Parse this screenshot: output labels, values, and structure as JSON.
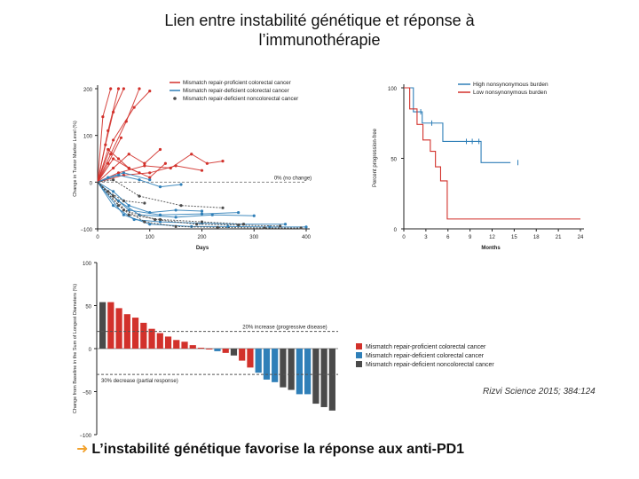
{
  "slide": {
    "title_line1": "Lien entre instabilité génétique et réponse à",
    "title_line2": "l’immunothérapie",
    "citation": "Rizvi Science 2015; 384:124",
    "takeaway": "L’instabilité génétique favorise la réponse aux anti-PD1",
    "arrow_glyph": "➜"
  },
  "colors": {
    "red": "#d2312b",
    "blue": "#2f7fb8",
    "gray": "#4a4a4a",
    "orange": "#f2a22e"
  },
  "chart_data": [
    {
      "id": "spider",
      "type": "line",
      "xlabel": "Days",
      "ylabel": "Change in Tumor Marker Level (%)",
      "xlim": [
        0,
        400
      ],
      "ylim": [
        -100,
        200
      ],
      "xticks": [
        "0",
        "100",
        "200",
        "300",
        "400"
      ],
      "yticks": [
        "200",
        "100",
        "0",
        "−100"
      ],
      "annotation": "0% (no change)",
      "legend": [
        {
          "label": "Mismatch repair-proficient colorectal cancer",
          "color": "#d2312b",
          "marker": "line"
        },
        {
          "label": "Mismatch repair-deficient colorectal cancer",
          "color": "#2f7fb8",
          "marker": "line"
        },
        {
          "label": "Mismatch repair-deficient noncolorectal cancer",
          "color": "#4a4a4a",
          "marker": "dot"
        }
      ],
      "series": [
        {
          "group": "red",
          "x": [
            0,
            20,
            40
          ],
          "y": [
            0,
            110,
            200
          ]
        },
        {
          "group": "red",
          "x": [
            0,
            15,
            30,
            50
          ],
          "y": [
            0,
            80,
            150,
            200
          ]
        },
        {
          "group": "red",
          "x": [
            0,
            25,
            55,
            80
          ],
          "y": [
            0,
            60,
            130,
            200
          ]
        },
        {
          "group": "red",
          "x": [
            0,
            30,
            70,
            100
          ],
          "y": [
            0,
            90,
            160,
            195
          ]
        },
        {
          "group": "red",
          "x": [
            0,
            20,
            45
          ],
          "y": [
            0,
            40,
            95
          ]
        },
        {
          "group": "red",
          "x": [
            0,
            30,
            60,
            90,
            120
          ],
          "y": [
            0,
            30,
            60,
            40,
            70
          ]
        },
        {
          "group": "red",
          "x": [
            0,
            40,
            90,
            140,
            180,
            210,
            240
          ],
          "y": [
            0,
            20,
            35,
            30,
            60,
            40,
            45
          ]
        },
        {
          "group": "red",
          "x": [
            0,
            30,
            60,
            100,
            130
          ],
          "y": [
            0,
            50,
            30,
            10,
            40
          ]
        },
        {
          "group": "red",
          "x": [
            0,
            20,
            40,
            60,
            80
          ],
          "y": [
            0,
            70,
            50,
            30,
            20
          ]
        },
        {
          "group": "red",
          "x": [
            0,
            50,
            100,
            150,
            200
          ],
          "y": [
            0,
            15,
            20,
            35,
            25
          ]
        },
        {
          "group": "red",
          "x": [
            0,
            10,
            25
          ],
          "y": [
            0,
            140,
            200
          ]
        },
        {
          "group": "blue",
          "x": [
            0,
            40,
            80,
            120,
            160
          ],
          "y": [
            0,
            15,
            5,
            -10,
            -5
          ]
        },
        {
          "group": "blue",
          "x": [
            0,
            30,
            60,
            100,
            150,
            200
          ],
          "y": [
            0,
            -20,
            -50,
            -65,
            -60,
            -62
          ]
        },
        {
          "group": "blue",
          "x": [
            0,
            40,
            80,
            150,
            220,
            300
          ],
          "y": [
            0,
            -40,
            -70,
            -75,
            -70,
            -72
          ]
        },
        {
          "group": "blue",
          "x": [
            0,
            30,
            70,
            120,
            200,
            280,
            360
          ],
          "y": [
            0,
            -50,
            -80,
            -85,
            -88,
            -90,
            -90
          ]
        },
        {
          "group": "blue",
          "x": [
            0,
            20,
            50,
            100
          ],
          "y": [
            0,
            10,
            20,
            5
          ]
        },
        {
          "group": "blue",
          "x": [
            0,
            60,
            120,
            200,
            270
          ],
          "y": [
            0,
            -60,
            -70,
            -68,
            -65
          ]
        },
        {
          "group": "blue",
          "x": [
            0,
            50,
            100,
            180,
            250,
            330,
            400
          ],
          "y": [
            0,
            -70,
            -90,
            -95,
            -95,
            -96,
            -96
          ]
        },
        {
          "group": "gray",
          "x": [
            0,
            30,
            60,
            120,
            200,
            280
          ],
          "y": [
            0,
            -30,
            -70,
            -80,
            -85,
            -90
          ]
        },
        {
          "group": "gray",
          "x": [
            0,
            40,
            90,
            150,
            230,
            320,
            390
          ],
          "y": [
            0,
            -50,
            -85,
            -95,
            -97,
            -98,
            -98
          ]
        },
        {
          "group": "gray",
          "x": [
            0,
            20,
            50,
            90
          ],
          "y": [
            0,
            -20,
            -40,
            -45
          ]
        },
        {
          "group": "gray",
          "x": [
            0,
            30,
            80,
            160,
            240
          ],
          "y": [
            0,
            5,
            -30,
            -50,
            -55
          ]
        },
        {
          "group": "gray",
          "x": [
            0,
            50,
            110,
            190,
            270,
            350
          ],
          "y": [
            0,
            -60,
            -80,
            -90,
            -92,
            -94
          ]
        }
      ]
    },
    {
      "id": "km",
      "type": "line",
      "xlabel": "Months",
      "ylabel": "Percent progression-free",
      "xlim": [
        0,
        24
      ],
      "ylim": [
        0,
        100
      ],
      "xticks": [
        "0",
        "3",
        "6",
        "9",
        "12",
        "15",
        "18",
        "21",
        "24"
      ],
      "yticks": [
        "100",
        "50",
        "0"
      ],
      "legend": [
        {
          "label": "High nonsynonymous burden",
          "color": "#2f7fb8"
        },
        {
          "label": "Low nonsynonymous burden",
          "color": "#d2312b"
        }
      ],
      "series": [
        {
          "name": "High nonsynonymous burden",
          "group": "blue",
          "x": [
            0,
            1.3,
            1.3,
            2.5,
            2.5,
            5.3,
            5.3,
            10.5,
            10.5,
            14.5
          ],
          "y": [
            100,
            100,
            83,
            83,
            75,
            75,
            62,
            62,
            47,
            47
          ]
        },
        {
          "name": "Low nonsynonymous burden",
          "group": "red",
          "x": [
            0,
            0.8,
            0.8,
            1.8,
            1.8,
            2.6,
            2.6,
            3.6,
            3.6,
            4.3,
            4.3,
            5.0,
            5.0,
            5.9,
            5.9,
            24
          ],
          "y": [
            100,
            100,
            85,
            85,
            74,
            74,
            63,
            63,
            55,
            55,
            44,
            44,
            34,
            34,
            7,
            7
          ]
        }
      ],
      "censors_high": [
        [
          2.3,
          83
        ],
        [
          3.8,
          75
        ],
        [
          8.5,
          62
        ],
        [
          9.3,
          62
        ],
        [
          10.2,
          62
        ],
        [
          15.5,
          47
        ]
      ]
    },
    {
      "id": "waterfall",
      "type": "bar",
      "ylabel": "Change from Baseline in the Sum of Longest Diameters (%)",
      "ylim": [
        -100,
        100
      ],
      "yticks": [
        "100",
        "50",
        "0",
        "−50",
        "−100"
      ],
      "ref_lines": [
        {
          "value": 20,
          "label": "20% increase (progressive disease)"
        },
        {
          "value": -30,
          "label": "30% decrease (partial response)"
        }
      ],
      "legend": [
        {
          "label": "Mismatch repair-proficient colorectal cancer",
          "color": "#d2312b"
        },
        {
          "label": "Mismatch repair-deficient colorectal cancer",
          "color": "#2f7fb8"
        },
        {
          "label": "Mismatch repair-deficient noncolorectal cancer",
          "color": "#4a4a4a"
        }
      ],
      "bars": [
        {
          "v": 54,
          "g": "gray"
        },
        {
          "v": 54,
          "g": "red"
        },
        {
          "v": 47,
          "g": "red"
        },
        {
          "v": 40,
          "g": "red"
        },
        {
          "v": 36,
          "g": "red"
        },
        {
          "v": 30,
          "g": "red"
        },
        {
          "v": 23,
          "g": "red"
        },
        {
          "v": 18,
          "g": "red"
        },
        {
          "v": 14,
          "g": "red"
        },
        {
          "v": 10,
          "g": "red"
        },
        {
          "v": 8,
          "g": "red"
        },
        {
          "v": 4,
          "g": "red"
        },
        {
          "v": 1,
          "g": "red"
        },
        {
          "v": -1,
          "g": "red"
        },
        {
          "v": -3,
          "g": "blue"
        },
        {
          "v": -5,
          "g": "red"
        },
        {
          "v": -8,
          "g": "gray"
        },
        {
          "v": -14,
          "g": "red"
        },
        {
          "v": -22,
          "g": "red"
        },
        {
          "v": -28,
          "g": "blue"
        },
        {
          "v": -36,
          "g": "blue"
        },
        {
          "v": -39,
          "g": "blue"
        },
        {
          "v": -45,
          "g": "gray"
        },
        {
          "v": -48,
          "g": "gray"
        },
        {
          "v": -53,
          "g": "blue"
        },
        {
          "v": -53,
          "g": "blue"
        },
        {
          "v": -64,
          "g": "gray"
        },
        {
          "v": -68,
          "g": "gray"
        },
        {
          "v": -72,
          "g": "gray"
        }
      ]
    }
  ]
}
